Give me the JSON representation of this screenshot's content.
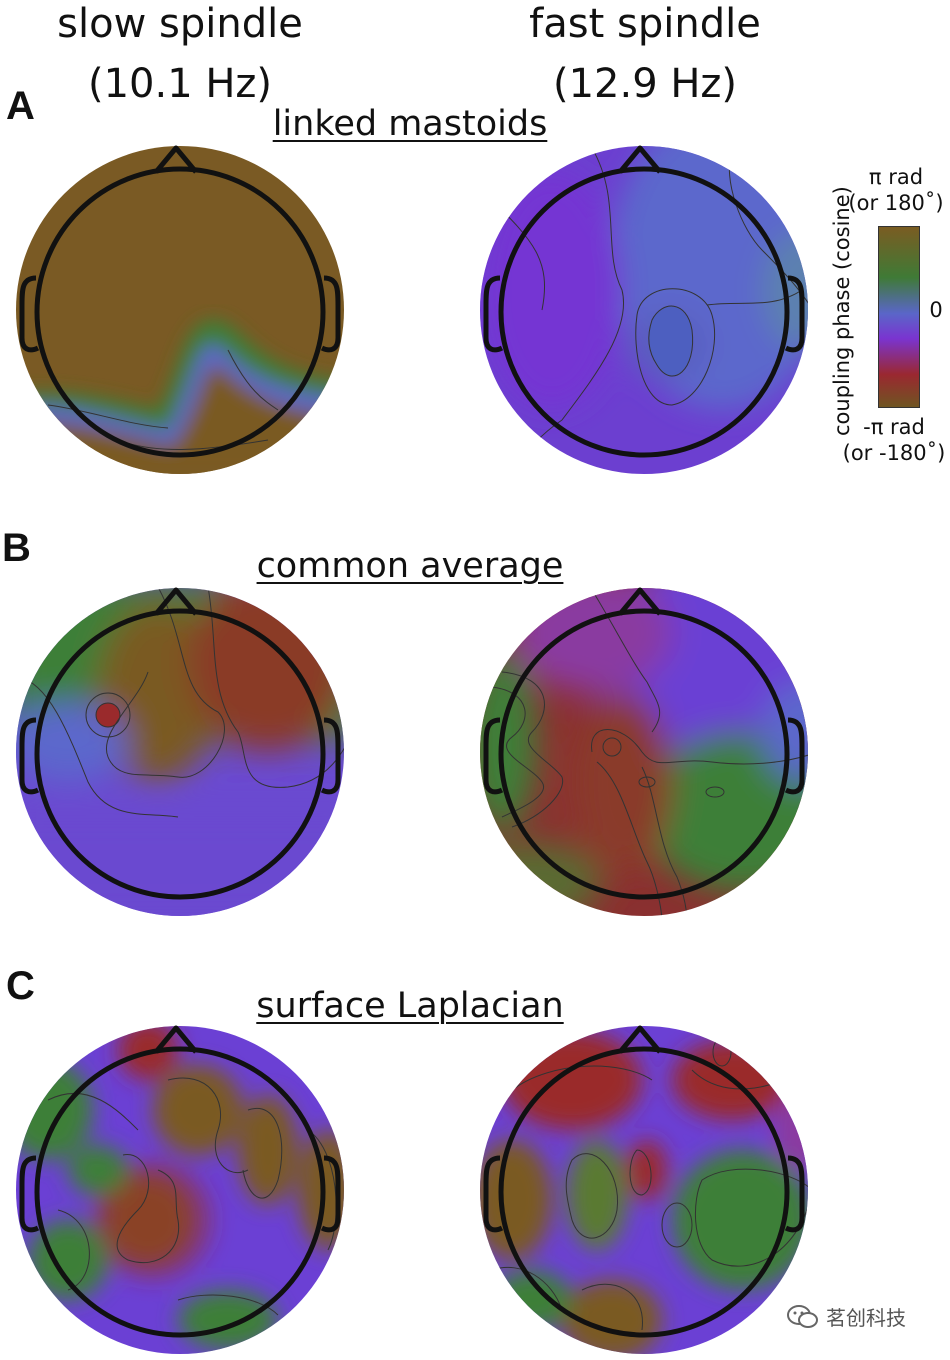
{
  "columns": {
    "left": {
      "line1": "slow spindle",
      "line2": "(10.1 Hz)"
    },
    "right": {
      "line1": "fast spindle",
      "line2": "(12.9 Hz)"
    }
  },
  "panels": [
    {
      "letter": "A",
      "title": "linked mastoids"
    },
    {
      "letter": "B",
      "title": "common average"
    },
    {
      "letter": "C",
      "title": "surface Laplacian"
    }
  ],
  "colorbar": {
    "axis_label": "coupling phase (cosine)",
    "top_line1": "π rad",
    "top_line2": "(or 180˚)",
    "mid": "0",
    "bottom_line1": "-π rad",
    "bottom_line2": "(or -180˚)",
    "colors": [
      "#7a5c22",
      "#3f7a36",
      "#5a66c8",
      "#7a34d0",
      "#9a2830",
      "#6f5522"
    ]
  },
  "watermark": {
    "text": "茗创科技"
  },
  "palette": {
    "brown": "#7a5a24",
    "green": "#3e7f37",
    "blue": "#5b67cc",
    "purple": "#7836d3",
    "red": "#9a2a2c"
  }
}
